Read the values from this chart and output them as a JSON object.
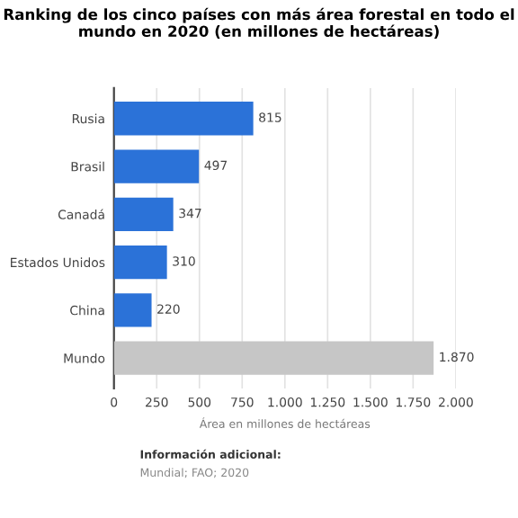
{
  "chart_data": {
    "type": "bar",
    "orientation": "horizontal",
    "title": "Ranking de los cinco países con más área forestal en todo el mundo en 2020 (en millones de hectáreas)",
    "categories": [
      "Rusia",
      "Brasil",
      "Canadá",
      "Estados Unidos",
      "China",
      "Mundo"
    ],
    "values": [
      815,
      497,
      347,
      310,
      220,
      1870
    ],
    "colors": [
      "#2b72d8",
      "#2b72d8",
      "#2b72d8",
      "#2b72d8",
      "#2b72d8",
      "#c6c6c6"
    ],
    "value_labels": [
      "815",
      "497",
      "347",
      "310",
      "220",
      "1.870"
    ],
    "xlabel": "Área en millones de hectáreas",
    "xlim": [
      0,
      2000
    ],
    "xticks": [
      0,
      250,
      500,
      750,
      {
        "value": 1000,
        "label": "1.000"
      },
      {
        "value": 1250,
        "label": "1.250"
      },
      {
        "value": 1500,
        "label": "1.500"
      },
      {
        "value": 1750,
        "label": "1.750"
      },
      {
        "value": 2000,
        "label": "2.000"
      }
    ],
    "grid": "x",
    "annotations": [
      "Información adicional:",
      "Mundial; FAO; 2020"
    ]
  }
}
